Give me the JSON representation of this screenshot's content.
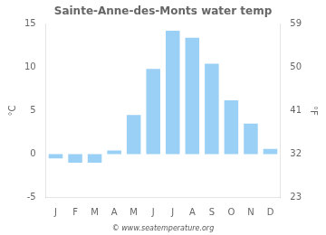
{
  "chart_data": {
    "type": "bar",
    "title": "Sainte-Anne-des-Monts water temp",
    "categories": [
      "J",
      "F",
      "M",
      "A",
      "M",
      "J",
      "J",
      "A",
      "S",
      "O",
      "N",
      "D"
    ],
    "values": [
      -0.5,
      -1.0,
      -1.0,
      0.4,
      4.5,
      9.8,
      14.2,
      13.4,
      10.4,
      6.2,
      3.5,
      0.6
    ],
    "ylim": [
      -5,
      15
    ],
    "yticks": [
      -5,
      0,
      5,
      10,
      15
    ],
    "y2lim": [
      23,
      59
    ],
    "y2ticks": [
      23,
      32,
      41,
      50,
      59
    ],
    "ylabel": "°C",
    "y2label": "°F",
    "annotations": [
      "© www.seatemperature.org"
    ],
    "grid": false
  }
}
